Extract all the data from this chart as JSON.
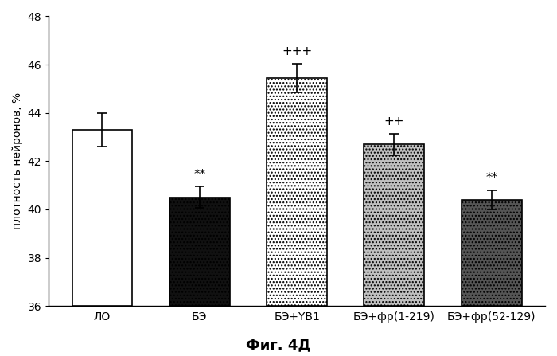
{
  "categories": [
    "ЛО",
    "БЭ",
    "БЭ+YB1",
    "БЭ+фр(1-219)",
    "БЭ+фр(52-129)"
  ],
  "values": [
    43.3,
    40.5,
    45.45,
    42.7,
    40.4
  ],
  "errors": [
    0.7,
    0.45,
    0.6,
    0.45,
    0.4
  ],
  "annotations": [
    "",
    "**",
    "+++",
    "++",
    "**"
  ],
  "ylabel": "плотность нейронов, %",
  "ylim": [
    36,
    48
  ],
  "yticks": [
    36,
    38,
    40,
    42,
    44,
    46,
    48
  ],
  "title": "Фиг. 4Д",
  "title_fontsize": 13,
  "label_fontsize": 10,
  "tick_fontsize": 10,
  "annotation_fontsize": 11,
  "bar_width": 0.62,
  "background_color": "#ffffff",
  "bar_configs": [
    {
      "color": "white",
      "edgecolor": "black",
      "hatch": "",
      "linewidth": 1.2
    },
    {
      "color": "#111111",
      "edgecolor": "black",
      "hatch": "....",
      "linewidth": 1.2
    },
    {
      "color": "white",
      "edgecolor": "black",
      "hatch": "....",
      "linewidth": 1.2
    },
    {
      "color": "#c0c0c0",
      "edgecolor": "black",
      "hatch": "....",
      "linewidth": 1.2
    },
    {
      "color": "#555555",
      "edgecolor": "black",
      "hatch": "....",
      "linewidth": 1.2
    }
  ]
}
